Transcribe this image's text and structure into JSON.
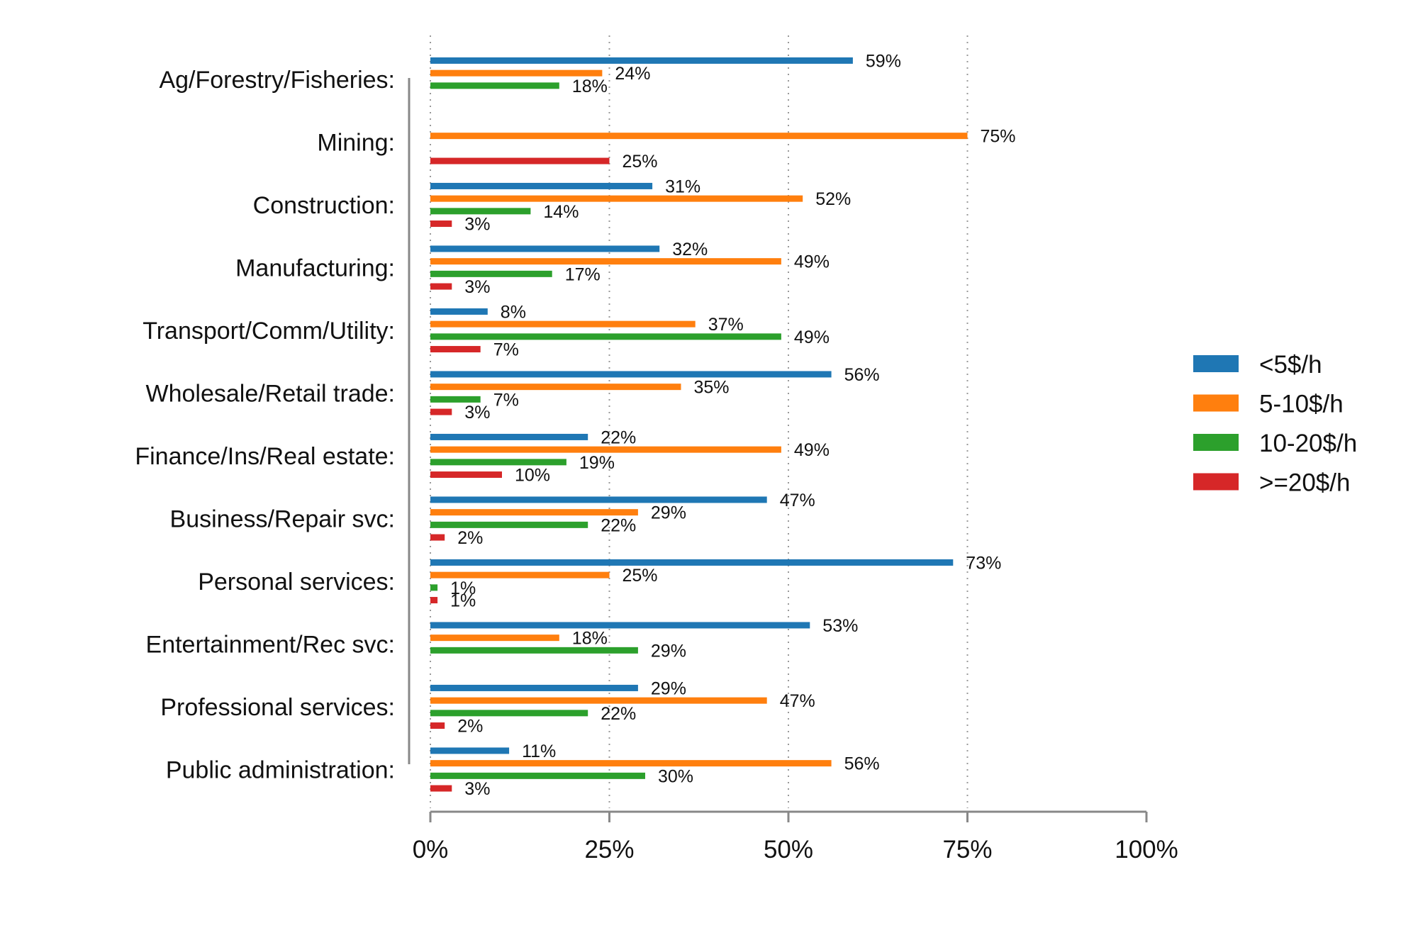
{
  "chart_data": {
    "type": "bar",
    "orientation": "horizontal",
    "title": "",
    "xlabel": "",
    "ylabel": "",
    "xlim": [
      0,
      100
    ],
    "x_ticks": [
      "0%",
      "25%",
      "50%",
      "75%",
      "100%"
    ],
    "grid": "vertical dotted",
    "legend_position": "right",
    "value_suffix": "%",
    "categories": [
      "Ag/Forestry/Fisheries:",
      "Mining:",
      "Construction:",
      "Manufacturing:",
      "Transport/Comm/Utility:",
      "Wholesale/Retail trade:",
      "Finance/Ins/Real estate:",
      "Business/Repair svc:",
      "Personal services:",
      "Entertainment/Rec svc:",
      "Professional services:",
      "Public administration:"
    ],
    "series": [
      {
        "name": "<5$/h",
        "color": "#1f77b4",
        "values": [
          59,
          null,
          31,
          32,
          8,
          56,
          22,
          47,
          73,
          53,
          29,
          11
        ]
      },
      {
        "name": "5-10$/h",
        "color": "#ff7f0e",
        "values": [
          24,
          75,
          52,
          49,
          37,
          35,
          49,
          29,
          25,
          18,
          47,
          56
        ]
      },
      {
        "name": "10-20$/h",
        "color": "#2ca02c",
        "values": [
          18,
          null,
          14,
          17,
          49,
          7,
          19,
          22,
          1,
          29,
          22,
          30
        ]
      },
      {
        "name": ">=20$/h",
        "color": "#d62728",
        "values": [
          null,
          25,
          3,
          3,
          7,
          3,
          10,
          2,
          1,
          null,
          2,
          3
        ]
      }
    ]
  }
}
